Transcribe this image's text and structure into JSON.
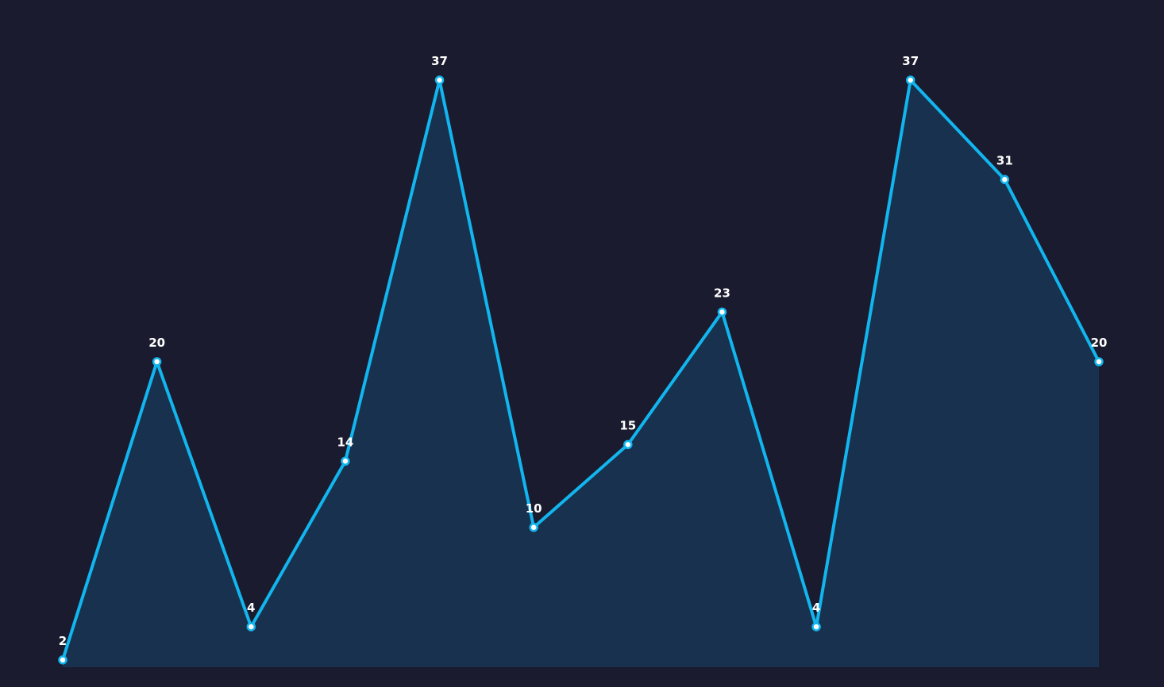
{
  "chart_data": {
    "type": "area",
    "categories": [
      "",
      "",
      "",
      "",
      "",
      "",
      "",
      "",
      "",
      "",
      "",
      ""
    ],
    "values": [
      2,
      20,
      4,
      14,
      37,
      10,
      15,
      23,
      4,
      37,
      31,
      20
    ],
    "data_labels": [
      "2",
      "20",
      "4",
      "14",
      "37",
      "10",
      "15",
      "23",
      "4",
      "37",
      "31",
      "20"
    ],
    "title": "",
    "xlabel": "",
    "ylabel": "",
    "ylim": [
      1.8,
      37
    ],
    "grid": false,
    "legend": "none",
    "line_color": "#12b5ee",
    "fill_color": "#17314e",
    "marker_fill": "#ffffff",
    "background": "#1a1b2e"
  }
}
